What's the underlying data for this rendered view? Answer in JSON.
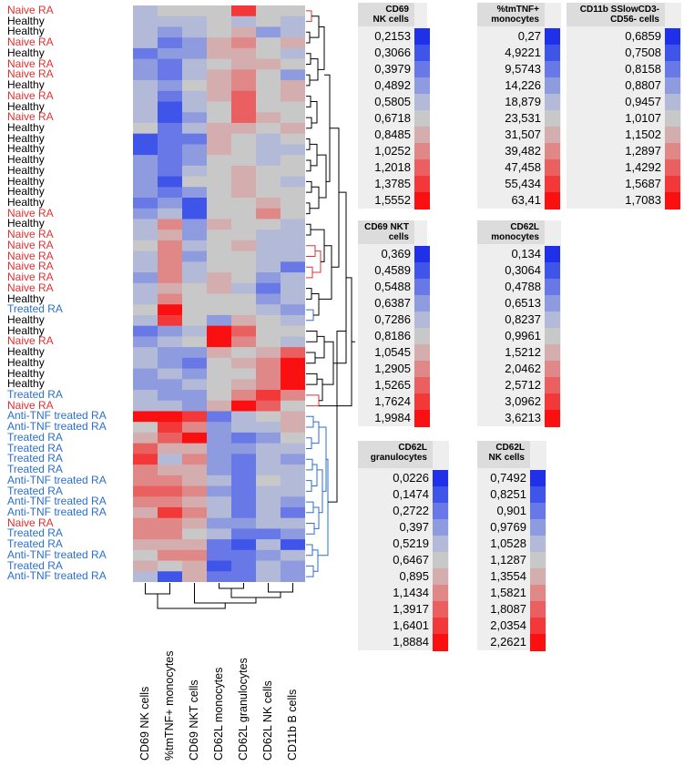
{
  "chart_data": {
    "type": "heatmap",
    "columns": [
      "CD69 NK cells",
      "%tmTNF+ monocytes",
      "CD69 NKT cells",
      "CD62L monocytes",
      "CD62L granulocytes",
      "CD62L NK cells",
      "CD11b B cells"
    ],
    "rows": [
      {
        "label": "Naive RA",
        "group": "naive"
      },
      {
        "label": "Healthy",
        "group": "healthy"
      },
      {
        "label": "Healthy",
        "group": "healthy"
      },
      {
        "label": "Naive RA",
        "group": "naive"
      },
      {
        "label": "Healthy",
        "group": "healthy"
      },
      {
        "label": "Naive RA",
        "group": "naive"
      },
      {
        "label": "Naive RA",
        "group": "naive"
      },
      {
        "label": "Healthy",
        "group": "healthy"
      },
      {
        "label": "Naive RA",
        "group": "naive"
      },
      {
        "label": "Healthy",
        "group": "healthy"
      },
      {
        "label": "Naive RA",
        "group": "naive"
      },
      {
        "label": "Healthy",
        "group": "healthy"
      },
      {
        "label": "Healthy",
        "group": "healthy"
      },
      {
        "label": "Healthy",
        "group": "healthy"
      },
      {
        "label": "Healthy",
        "group": "healthy"
      },
      {
        "label": "Healthy",
        "group": "healthy"
      },
      {
        "label": "Healthy",
        "group": "healthy"
      },
      {
        "label": "Healthy",
        "group": "healthy"
      },
      {
        "label": "Healthy",
        "group": "healthy"
      },
      {
        "label": "Naive RA",
        "group": "naive"
      },
      {
        "label": "Healthy",
        "group": "healthy"
      },
      {
        "label": "Naive RA",
        "group": "naive"
      },
      {
        "label": "Naive RA",
        "group": "naive"
      },
      {
        "label": "Naive RA",
        "group": "naive"
      },
      {
        "label": "Naive RA",
        "group": "naive"
      },
      {
        "label": "Naive RA",
        "group": "naive"
      },
      {
        "label": "Naive RA",
        "group": "naive"
      },
      {
        "label": "Healthy",
        "group": "healthy"
      },
      {
        "label": "Treated RA",
        "group": "treated"
      },
      {
        "label": "Healthy",
        "group": "healthy"
      },
      {
        "label": "Healthy",
        "group": "healthy"
      },
      {
        "label": "Naive RA",
        "group": "naive"
      },
      {
        "label": "Healthy",
        "group": "healthy"
      },
      {
        "label": "Healthy",
        "group": "healthy"
      },
      {
        "label": "Healthy",
        "group": "healthy"
      },
      {
        "label": "Healthy",
        "group": "healthy"
      },
      {
        "label": "Treated RA",
        "group": "treated"
      },
      {
        "label": "Naive RA",
        "group": "naive"
      },
      {
        "label": "Anti-TNF treated RA",
        "group": "treated"
      },
      {
        "label": "Anti-TNF treated RA",
        "group": "treated"
      },
      {
        "label": "Treated RA",
        "group": "treated"
      },
      {
        "label": "Treated RA",
        "group": "treated"
      },
      {
        "label": "Treated RA",
        "group": "treated"
      },
      {
        "label": "Treated RA",
        "group": "treated"
      },
      {
        "label": "Anti-TNF treated RA",
        "group": "treated"
      },
      {
        "label": "Treated RA",
        "group": "treated"
      },
      {
        "label": "Anti-TNF treated RA",
        "group": "treated"
      },
      {
        "label": "Anti-TNF treated RA",
        "group": "treated"
      },
      {
        "label": "Naive RA",
        "group": "naive"
      },
      {
        "label": "Treated RA",
        "group": "treated"
      },
      {
        "label": "Treated RA",
        "group": "treated"
      },
      {
        "label": "Anti-TNF treated RA",
        "group": "treated"
      },
      {
        "label": "Treated RA",
        "group": "treated"
      },
      {
        "label": "Anti-TNF treated RA",
        "group": "treated"
      }
    ],
    "matrix": [
      [
        -1,
        0,
        0,
        0,
        4,
        0,
        0
      ],
      [
        -1,
        -1,
        -1,
        0,
        -1,
        0,
        -1
      ],
      [
        -1,
        -2,
        -1,
        0,
        1,
        -2,
        -1
      ],
      [
        -1,
        -3,
        -2,
        1,
        2,
        0,
        1
      ],
      [
        -3,
        -2,
        -2,
        1,
        1,
        0,
        -1
      ],
      [
        -2,
        -3,
        -1,
        0,
        1,
        1,
        0
      ],
      [
        -2,
        -3,
        -1,
        1,
        2,
        0,
        -2
      ],
      [
        -1,
        -2,
        0,
        1,
        2,
        0,
        1
      ],
      [
        -1,
        -3,
        -1,
        1,
        3,
        0,
        1
      ],
      [
        -1,
        -4,
        -1,
        0,
        3,
        0,
        0
      ],
      [
        -1,
        -4,
        -2,
        0,
        3,
        1,
        0
      ],
      [
        0,
        -3,
        -1,
        1,
        1,
        0,
        1
      ],
      [
        -4,
        -3,
        -3,
        1,
        0,
        -1,
        0
      ],
      [
        -4,
        -3,
        -2,
        1,
        0,
        -1,
        -1
      ],
      [
        -2,
        -3,
        -2,
        0,
        0,
        -1,
        0
      ],
      [
        -2,
        -3,
        -1,
        0,
        1,
        0,
        0
      ],
      [
        -2,
        -4,
        0,
        0,
        1,
        0,
        -1
      ],
      [
        -2,
        -3,
        -2,
        0,
        1,
        0,
        0
      ],
      [
        -3,
        -2,
        -4,
        0,
        0,
        1,
        0
      ],
      [
        -2,
        -1,
        -4,
        0,
        0,
        2,
        0
      ],
      [
        -1,
        2,
        -2,
        1,
        0,
        0,
        -1
      ],
      [
        -1,
        1,
        -2,
        0,
        0,
        -1,
        -1
      ],
      [
        0,
        2,
        -1,
        0,
        1,
        -1,
        -1
      ],
      [
        -1,
        2,
        -2,
        0,
        0,
        -1,
        -1
      ],
      [
        -1,
        2,
        -1,
        0,
        0,
        -1,
        -3
      ],
      [
        -2,
        2,
        -1,
        1,
        0,
        -2,
        -1
      ],
      [
        -1,
        1,
        0,
        1,
        -1,
        -3,
        -1
      ],
      [
        -1,
        2,
        0,
        0,
        0,
        -2,
        -1
      ],
      [
        0,
        5,
        0,
        0,
        0,
        -1,
        -2
      ],
      [
        -1,
        4,
        0,
        -2,
        1,
        0,
        -1
      ],
      [
        -3,
        -2,
        -1,
        5,
        3,
        0,
        0
      ],
      [
        -2,
        -1,
        0,
        5,
        2,
        0,
        -1
      ],
      [
        -1,
        -2,
        -2,
        1,
        0,
        1,
        3
      ],
      [
        -1,
        -2,
        -3,
        0,
        1,
        2,
        5
      ],
      [
        -2,
        -1,
        -2,
        0,
        0,
        2,
        5
      ],
      [
        -2,
        -2,
        -1,
        0,
        1,
        2,
        5
      ],
      [
        -1,
        -2,
        -2,
        0,
        2,
        4,
        2
      ],
      [
        -1,
        -1,
        -2,
        1,
        5,
        3,
        0
      ],
      [
        5,
        5,
        4,
        -3,
        -1,
        0,
        1
      ],
      [
        0,
        4,
        2,
        -2,
        -1,
        -1,
        1
      ],
      [
        1,
        3,
        5,
        -2,
        -3,
        -2,
        0
      ],
      [
        3,
        1,
        1,
        -2,
        -2,
        -1,
        -1
      ],
      [
        4,
        -1,
        2,
        -2,
        -3,
        -1,
        -2
      ],
      [
        2,
        1,
        1,
        -2,
        -3,
        -1,
        -1
      ],
      [
        2,
        2,
        1,
        -1,
        -3,
        0,
        -1
      ],
      [
        3,
        3,
        2,
        -2,
        -3,
        -1,
        -1
      ],
      [
        2,
        2,
        1,
        -1,
        -3,
        -1,
        -2
      ],
      [
        1,
        4,
        2,
        -1,
        -3,
        -1,
        -3
      ],
      [
        2,
        2,
        1,
        -2,
        -2,
        -1,
        -1
      ],
      [
        2,
        2,
        0,
        -1,
        -3,
        -3,
        -2
      ],
      [
        1,
        1,
        1,
        -3,
        -4,
        -1,
        -4
      ],
      [
        0,
        2,
        2,
        -3,
        -3,
        -2,
        -1
      ],
      [
        1,
        0,
        1,
        -4,
        -3,
        -1,
        -2
      ],
      [
        -1,
        -4,
        1,
        -3,
        -3,
        -1,
        -2
      ]
    ],
    "color_scale": [
      "#2030e8",
      "#3f55ea",
      "#6878e6",
      "#8f9bdf",
      "#b3bad8",
      "#c8c8c8",
      "#d4aeae",
      "#e08888",
      "#ea6060",
      "#f23838",
      "#fa1010"
    ],
    "legends": [
      {
        "title": [
          "CD69",
          "NK cells"
        ],
        "values": [
          "0,2153",
          "0,3066",
          "0,3979",
          "0,4892",
          "0,5805",
          "0,6718",
          "0,8485",
          "1,0252",
          "1,2018",
          "1,3785",
          "1,5552"
        ]
      },
      {
        "title": [
          "%tmTNF+",
          "monocytes"
        ],
        "values": [
          "0,27",
          "4,9221",
          "9,5743",
          "14,226",
          "18,879",
          "23,531",
          "31,507",
          "39,482",
          "47,458",
          "55,434",
          "63,41"
        ]
      },
      {
        "title": [
          "CD11b SSlowCD3-",
          "CD56- cells"
        ],
        "values": [
          "0,6859",
          "0,7508",
          "0,8158",
          "0,8807",
          "0,9457",
          "1,0107",
          "1,1502",
          "1,2897",
          "1,4292",
          "1,5687",
          "1,7083"
        ]
      },
      {
        "title": [
          "CD69 NKT",
          "cells"
        ],
        "values": [
          "0,369",
          "0,4589",
          "0,5488",
          "0,6387",
          "0,7286",
          "0,8186",
          "1,0545",
          "1,2905",
          "1,5265",
          "1,7624",
          "1,9984"
        ]
      },
      {
        "title": [
          "CD62L",
          "monocytes"
        ],
        "values": [
          "0,134",
          "0,3064",
          "0,4788",
          "0,6513",
          "0,8237",
          "0,9961",
          "1,5212",
          "2,0462",
          "2,5712",
          "3,0962",
          "3,6213"
        ]
      },
      {
        "title": [
          "CD62L",
          "granulocytes"
        ],
        "values": [
          "0,0226",
          "0,1474",
          "0,2722",
          "0,397",
          "0,5219",
          "0,6467",
          "0,895",
          "1,1434",
          "1,3917",
          "1,6401",
          "1,8884"
        ]
      },
      {
        "title": [
          "CD62L",
          "NK cells"
        ],
        "values": [
          "0,7492",
          "0,8251",
          "0,901",
          "0,9769",
          "1,0528",
          "1,1287",
          "1,3554",
          "1,5821",
          "1,8087",
          "2,0354",
          "2,2621"
        ]
      }
    ]
  },
  "colors": {
    "naive": "#e03030",
    "healthy": "#000000",
    "treated": "#2a6fd0"
  }
}
